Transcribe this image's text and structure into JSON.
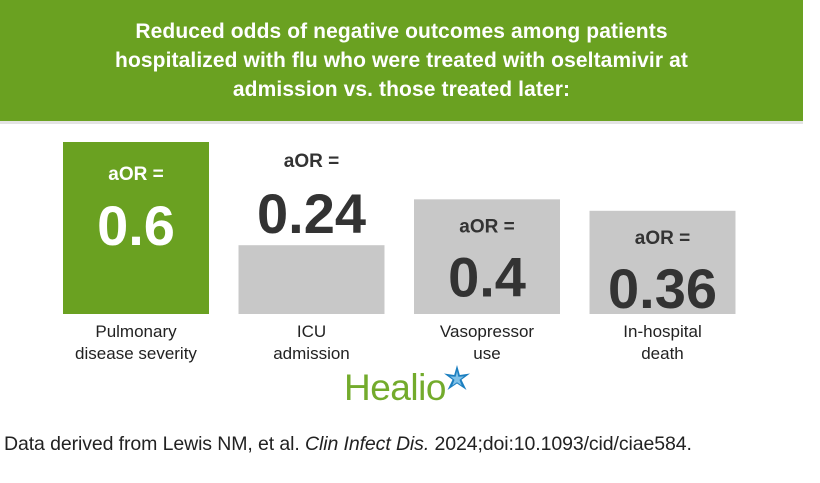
{
  "colors": {
    "accent": "#6aa121",
    "bar_gray": "#c8c8c8",
    "value_dark": "#333333",
    "value_light": "#ffffff",
    "logo_green": "#73ab2c",
    "logo_star_blue": "#1c7fc0"
  },
  "header": {
    "title": "Reduced odds of negative outcomes among patients hospitalized with flu who were treated with oseltamivir at admission vs. those treated later:"
  },
  "chart_data": {
    "type": "bar",
    "title": "Reduced odds of negative outcomes among patients hospitalized with flu who were treated with oseltamivir at admission vs. those treated later:",
    "categories": [
      [
        "Pulmonary",
        "disease severity"
      ],
      [
        "ICU",
        "admission"
      ],
      [
        "Vasopressor",
        "use"
      ],
      [
        "In-hospital",
        "death"
      ]
    ],
    "series": [
      {
        "values": [
          0.6,
          0.24,
          0.4,
          0.36
        ],
        "value_labels": [
          "0.6",
          "0.24",
          "0.4",
          "0.36"
        ]
      }
    ],
    "value_prefix": "aOR =",
    "highlight_index": 0,
    "ylim": [
      0,
      0.6
    ],
    "grid": false,
    "xlabel": "",
    "ylabel": ""
  },
  "logo": {
    "text": "Healio",
    "star_icon": "star-burst-icon"
  },
  "footnote": {
    "prefix": "Data derived from Lewis NM, et al. ",
    "journal": "Clin Infect Dis.",
    "suffix": " 2024;doi:10.1093/cid/ciae584."
  }
}
